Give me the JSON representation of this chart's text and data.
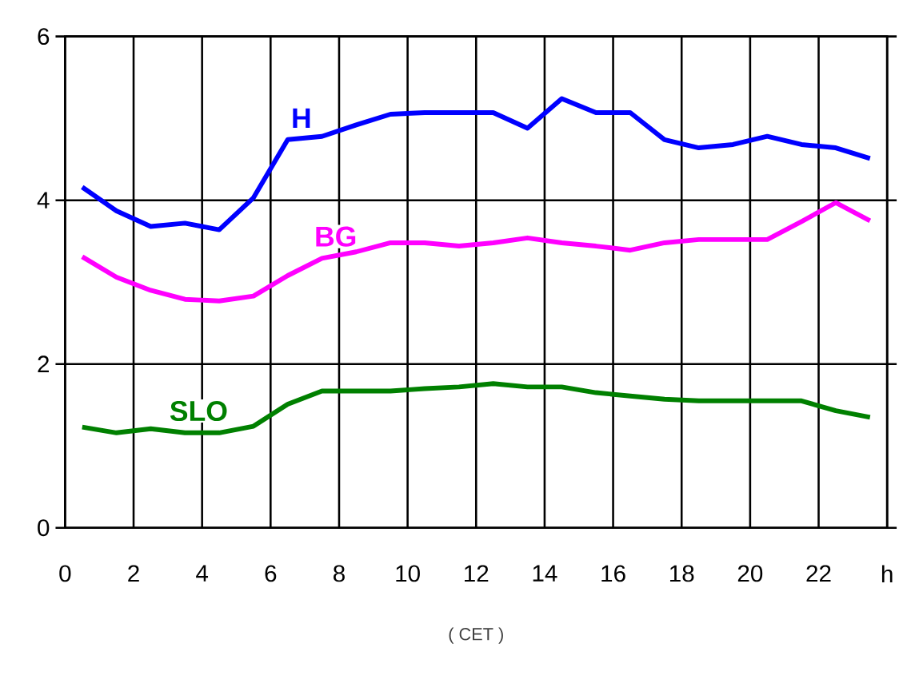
{
  "chart_data": {
    "type": "line",
    "xlabel": "( CET )",
    "x": [
      0.5,
      1.5,
      2.5,
      3.5,
      4.5,
      5.5,
      6.5,
      7.5,
      8.5,
      9.5,
      10.5,
      11.5,
      12.5,
      13.5,
      14.5,
      15.5,
      16.5,
      17.5,
      18.5,
      19.5,
      20.5,
      21.5,
      22.5,
      23.5
    ],
    "series": [
      {
        "name": "H",
        "color": "#0000ff",
        "values": [
          4.16,
          3.87,
          3.68,
          3.72,
          3.64,
          4.03,
          4.74,
          4.78,
          4.92,
          5.05,
          5.07,
          5.07,
          5.07,
          4.88,
          5.24,
          5.07,
          5.07,
          4.74,
          4.64,
          4.68,
          4.78,
          4.68,
          4.64,
          4.51
        ]
      },
      {
        "name": "BG",
        "color": "#ff00ff",
        "values": [
          3.31,
          3.06,
          2.9,
          2.79,
          2.77,
          2.83,
          3.08,
          3.29,
          3.37,
          3.48,
          3.48,
          3.44,
          3.48,
          3.54,
          3.48,
          3.44,
          3.39,
          3.48,
          3.52,
          3.52,
          3.52,
          3.74,
          3.97,
          3.75
        ]
      },
      {
        "name": "SLO",
        "color": "#008000",
        "values": [
          1.23,
          1.16,
          1.21,
          1.16,
          1.16,
          1.24,
          1.51,
          1.67,
          1.67,
          1.67,
          1.7,
          1.72,
          1.76,
          1.72,
          1.72,
          1.65,
          1.61,
          1.57,
          1.55,
          1.55,
          1.55,
          1.55,
          1.43,
          1.35
        ]
      }
    ],
    "xlim": [
      0,
      24
    ],
    "ylim": [
      0,
      6
    ],
    "xticks": [
      0,
      2,
      4,
      6,
      8,
      10,
      12,
      14,
      16,
      18,
      20,
      22,
      {
        "value": 24,
        "label": "h"
      }
    ],
    "yticks": [
      0,
      2,
      4,
      6
    ],
    "grid": true,
    "marker": "none",
    "line_style": "solid"
  }
}
